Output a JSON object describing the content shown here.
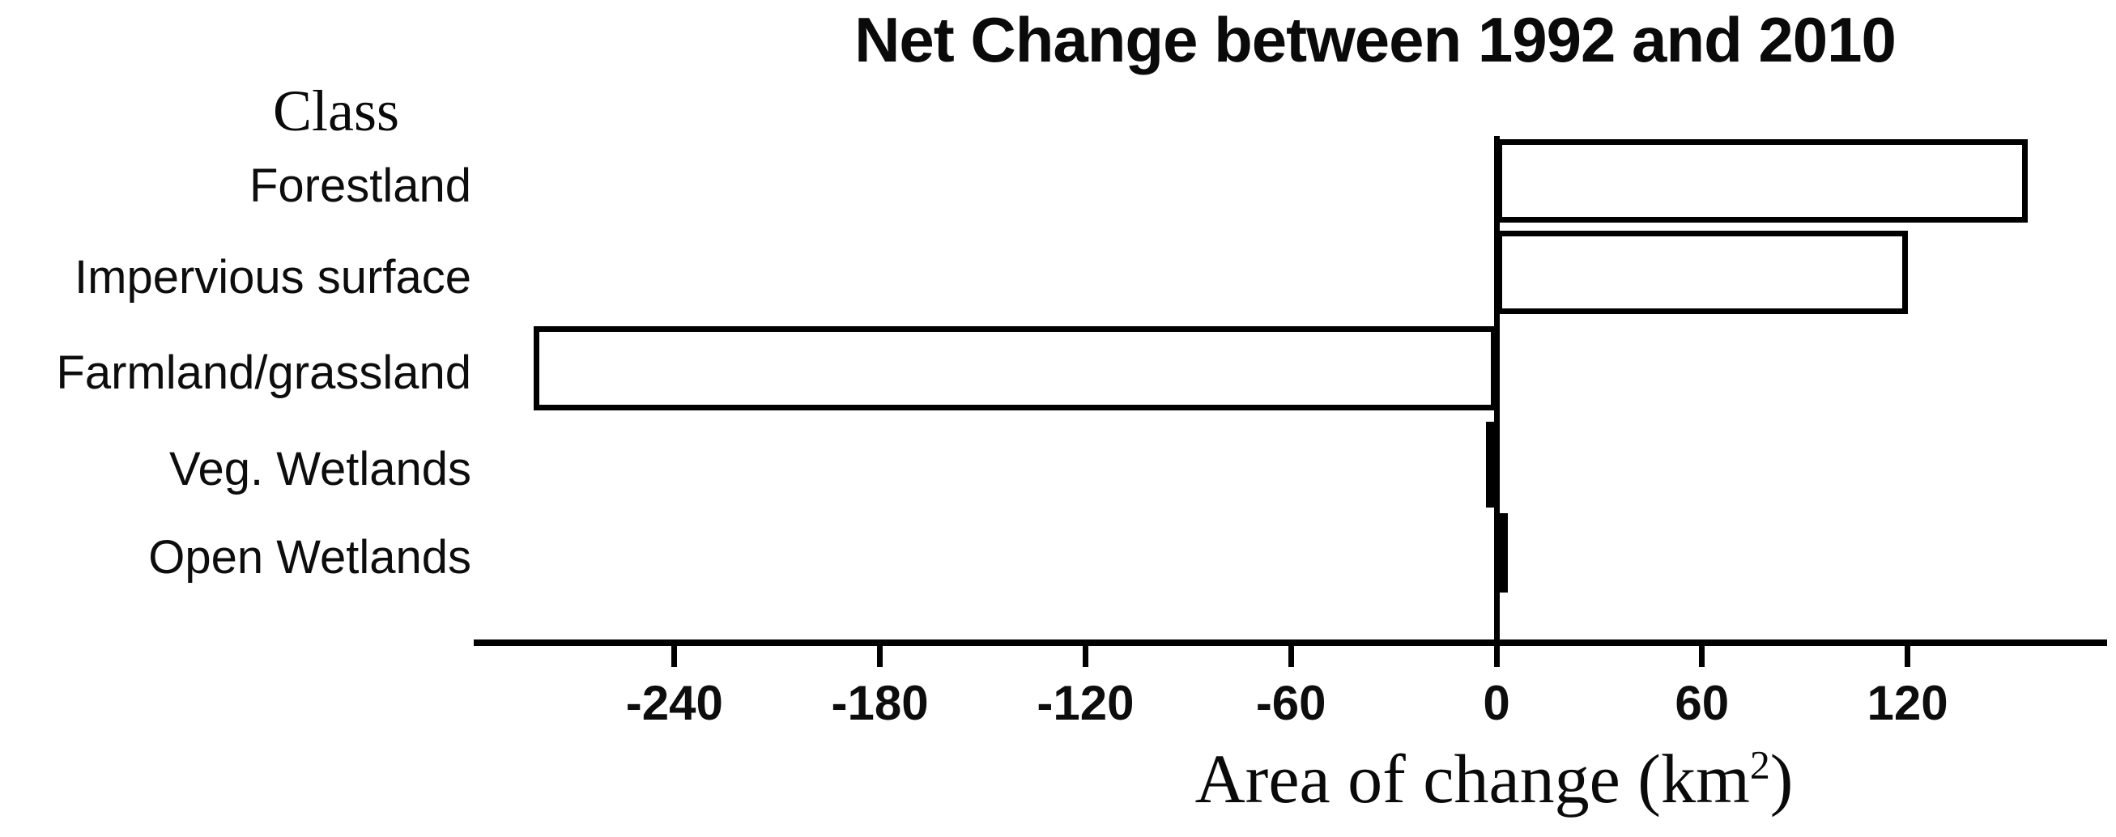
{
  "chart_data": {
    "type": "bar",
    "orientation": "horizontal",
    "title": "Net Change between 1992 and 2010",
    "axis_header": "Class",
    "categories": [
      "Forestland",
      "Impervious surface",
      "Farmland/grassland",
      "Veg. Wetlands",
      "Open Wetlands"
    ],
    "values": [
      155,
      120,
      -281,
      -3,
      3
    ],
    "x_ticks": [
      -240,
      -180,
      -120,
      -60,
      0,
      60,
      120
    ],
    "xlim": [
      -299,
      178
    ],
    "xlabel_prefix": "Area of change (km",
    "xlabel_sup": "2",
    "xlabel_suffix": ")",
    "bar_fill": "#ffffff",
    "bar_border": "#000000",
    "background": "#ffffff",
    "grid": false,
    "legend": false
  }
}
